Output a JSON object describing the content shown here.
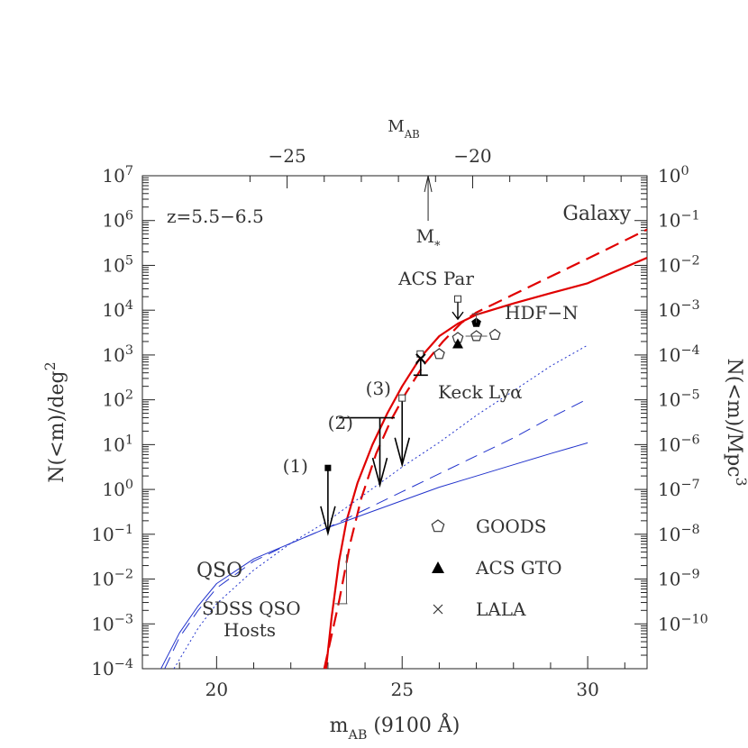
{
  "chart_data": {
    "type": "line",
    "title": "",
    "xlabel": {
      "main": "m",
      "sub": "AB",
      "rest": " (9100 Å)"
    },
    "ylabel_left": {
      "main": "N(<m)/deg",
      "sup": "2"
    },
    "ylabel_right": {
      "main": "N(<m)/Mpc",
      "sup": "3"
    },
    "top_axis_label": {
      "main": "M",
      "sub": "AB"
    },
    "xlim": [
      18.0,
      31.6
    ],
    "ylim_log": [
      -4,
      7
    ],
    "right_axis_log": [
      -11,
      0
    ],
    "x_ticks": [
      {
        "value": 20,
        "label": "20"
      },
      {
        "value": 25,
        "label": "25"
      },
      {
        "value": 30,
        "label": "30"
      }
    ],
    "top_ticks": [
      {
        "m": 21.9,
        "label": "−25"
      },
      {
        "m": 26.9,
        "label": "−20"
      }
    ],
    "y_ticks": [
      {
        "exp": -4,
        "label": "10",
        "sup": "−4"
      },
      {
        "exp": -3,
        "label": "10",
        "sup": "−3"
      },
      {
        "exp": -2,
        "label": "10",
        "sup": "−2"
      },
      {
        "exp": -1,
        "label": "10",
        "sup": "−1"
      },
      {
        "exp": 0,
        "label": "10",
        "sup": "0"
      },
      {
        "exp": 1,
        "label": "10",
        "sup": "1"
      },
      {
        "exp": 2,
        "label": "10",
        "sup": "2"
      },
      {
        "exp": 3,
        "label": "10",
        "sup": "3"
      },
      {
        "exp": 4,
        "label": "10",
        "sup": "4"
      },
      {
        "exp": 5,
        "label": "10",
        "sup": "5"
      },
      {
        "exp": 6,
        "label": "10",
        "sup": "6"
      },
      {
        "exp": 7,
        "label": "10",
        "sup": "7"
      }
    ],
    "right_ticks": [
      {
        "exp": -10,
        "label": "10",
        "sup": "−10"
      },
      {
        "exp": -9,
        "label": "10",
        "sup": "−9"
      },
      {
        "exp": -8,
        "label": "10",
        "sup": "−8"
      },
      {
        "exp": -7,
        "label": "10",
        "sup": "−7"
      },
      {
        "exp": -6,
        "label": "10",
        "sup": "−6"
      },
      {
        "exp": -5,
        "label": "10",
        "sup": "−5"
      },
      {
        "exp": -4,
        "label": "10",
        "sup": "−4"
      },
      {
        "exp": -3,
        "label": "10",
        "sup": "−3"
      },
      {
        "exp": -2,
        "label": "10",
        "sup": "−2"
      },
      {
        "exp": -1,
        "label": "10",
        "sup": "−1"
      },
      {
        "exp": 0,
        "label": "10",
        "sup": "0"
      }
    ],
    "redshift_label": "z=5.5−6.5",
    "mstar": {
      "m": 25.7,
      "label": "M",
      "sub": "*"
    },
    "colors": {
      "galaxy": "#e00000",
      "qso": "#2233cc",
      "data": "#000000",
      "upper": "#555555"
    },
    "series": [
      {
        "name": "Galaxy",
        "style": "solid",
        "color": "#e00000",
        "points": [
          [
            22.95,
            -4.0
          ],
          [
            23.1,
            -2.85
          ],
          [
            23.3,
            -1.6
          ],
          [
            23.5,
            -0.7
          ],
          [
            23.8,
            0.15
          ],
          [
            24.2,
            1.0
          ],
          [
            24.6,
            1.7
          ],
          [
            25.0,
            2.3
          ],
          [
            25.5,
            2.95
          ],
          [
            26.0,
            3.42
          ],
          [
            26.5,
            3.7
          ],
          [
            27.0,
            3.9
          ],
          [
            28.0,
            4.15
          ],
          [
            29.0,
            4.38
          ],
          [
            30.0,
            4.6
          ],
          [
            31.6,
            5.17
          ]
        ]
      },
      {
        "name": "",
        "style": "dashed",
        "color": "#e00000",
        "points": [
          [
            22.9,
            -4.0
          ],
          [
            23.3,
            -2.5
          ],
          [
            23.6,
            -1.2
          ],
          [
            23.9,
            -0.2
          ],
          [
            24.3,
            0.8
          ],
          [
            24.7,
            1.55
          ],
          [
            25.1,
            2.15
          ],
          [
            25.6,
            2.8
          ],
          [
            26.1,
            3.3
          ],
          [
            26.6,
            3.72
          ],
          [
            27.0,
            3.95
          ],
          [
            28.0,
            4.35
          ],
          [
            29.0,
            4.75
          ],
          [
            30.0,
            5.15
          ],
          [
            31.6,
            5.8
          ]
        ]
      },
      {
        "name": "QSO",
        "style": "solid",
        "color": "#2233cc",
        "points": [
          [
            18.5,
            -4.0
          ],
          [
            19.0,
            -3.2
          ],
          [
            19.5,
            -2.6
          ],
          [
            20.0,
            -2.1
          ],
          [
            21.0,
            -1.55
          ],
          [
            22.0,
            -1.2
          ],
          [
            23.0,
            -0.85
          ],
          [
            24.0,
            -0.55
          ],
          [
            25.0,
            -0.25
          ],
          [
            26.0,
            0.05
          ],
          [
            27.0,
            0.3
          ],
          [
            28.0,
            0.55
          ],
          [
            29.0,
            0.8
          ],
          [
            30.0,
            1.04
          ]
        ]
      },
      {
        "name": "",
        "style": "dashed",
        "color": "#2233cc",
        "points": [
          [
            18.6,
            -4.0
          ],
          [
            19.0,
            -3.3
          ],
          [
            19.5,
            -2.7
          ],
          [
            20.0,
            -2.2
          ],
          [
            21.0,
            -1.6
          ],
          [
            22.0,
            -1.2
          ],
          [
            23.0,
            -0.85
          ],
          [
            23.5,
            -0.65
          ],
          [
            24.0,
            -0.45
          ],
          [
            25.0,
            -0.05
          ],
          [
            26.0,
            0.35
          ],
          [
            27.0,
            0.75
          ],
          [
            28.0,
            1.15
          ],
          [
            29.0,
            1.6
          ],
          [
            30.0,
            2.02
          ]
        ]
      },
      {
        "name": "",
        "style": "dotted",
        "color": "#2233cc",
        "points": [
          [
            18.85,
            -4.0
          ],
          [
            19.5,
            -3.1
          ],
          [
            20.0,
            -2.55
          ],
          [
            21.0,
            -1.8
          ],
          [
            22.0,
            -1.2
          ],
          [
            23.0,
            -0.7
          ],
          [
            24.0,
            -0.1
          ],
          [
            25.0,
            0.5
          ],
          [
            26.0,
            1.05
          ],
          [
            27.0,
            1.65
          ],
          [
            28.0,
            2.2
          ],
          [
            29.0,
            2.75
          ],
          [
            30.0,
            3.22
          ]
        ]
      }
    ],
    "datasets": [
      {
        "name": "GOODS",
        "marker": "pentagon-open",
        "points": [
          [
            26.0,
            3.02
          ],
          [
            26.5,
            3.38
          ],
          [
            27.0,
            3.42
          ],
          [
            27.5,
            3.45
          ]
        ]
      },
      {
        "name": "ACS GTO",
        "marker": "triangle-filled",
        "points": [
          [
            26.5,
            3.25
          ]
        ]
      },
      {
        "name": "LALA",
        "marker": "cross",
        "points": [
          [
            25.5,
            2.92
          ]
        ]
      },
      {
        "name": "HDF-N",
        "marker": "pentagon-filled",
        "points": [
          [
            27.0,
            3.72
          ]
        ]
      }
    ],
    "upper_limits": [
      {
        "label": "(1)",
        "m": 23.0,
        "logN": 0.48,
        "arrow_to": -0.98,
        "box": "filled"
      },
      {
        "label": "(2)",
        "m": 24.4,
        "logN": 1.6,
        "arrow_to": 0.1,
        "bar_from": 23.3,
        "bar_to": 24.8,
        "box": "none"
      },
      {
        "label": "(3)",
        "m": 25.0,
        "logN": 2.04,
        "arrow_to": 0.55,
        "box": "open"
      },
      {
        "label": "ACS Par",
        "m": 26.5,
        "logN": 4.25,
        "arrow_to": 3.8,
        "box": "open"
      },
      {
        "label": "Keck Lyα",
        "m": 25.5,
        "logN": 2.55,
        "arrow_to": 2.15,
        "box": "open"
      }
    ],
    "sdss_limit": {
      "m": 23.5,
      "logN": -2.55
    },
    "annotations": {
      "galaxy": "Galaxy",
      "qso": "QSO",
      "acs_par": "ACS Par",
      "hdfn": "HDF−N",
      "keck": "Keck Lyα",
      "sdss_line1": "SDSS QSO",
      "sdss_line2": "Hosts",
      "label1": "(1)",
      "label2": "(2)",
      "label3": "(3)"
    },
    "legend": {
      "placement": "bottom-right",
      "entries": [
        {
          "marker": "pentagon-open",
          "label": "GOODS"
        },
        {
          "marker": "triangle-filled",
          "label": "ACS GTO"
        },
        {
          "marker": "cross",
          "label": "LALA"
        }
      ]
    }
  }
}
